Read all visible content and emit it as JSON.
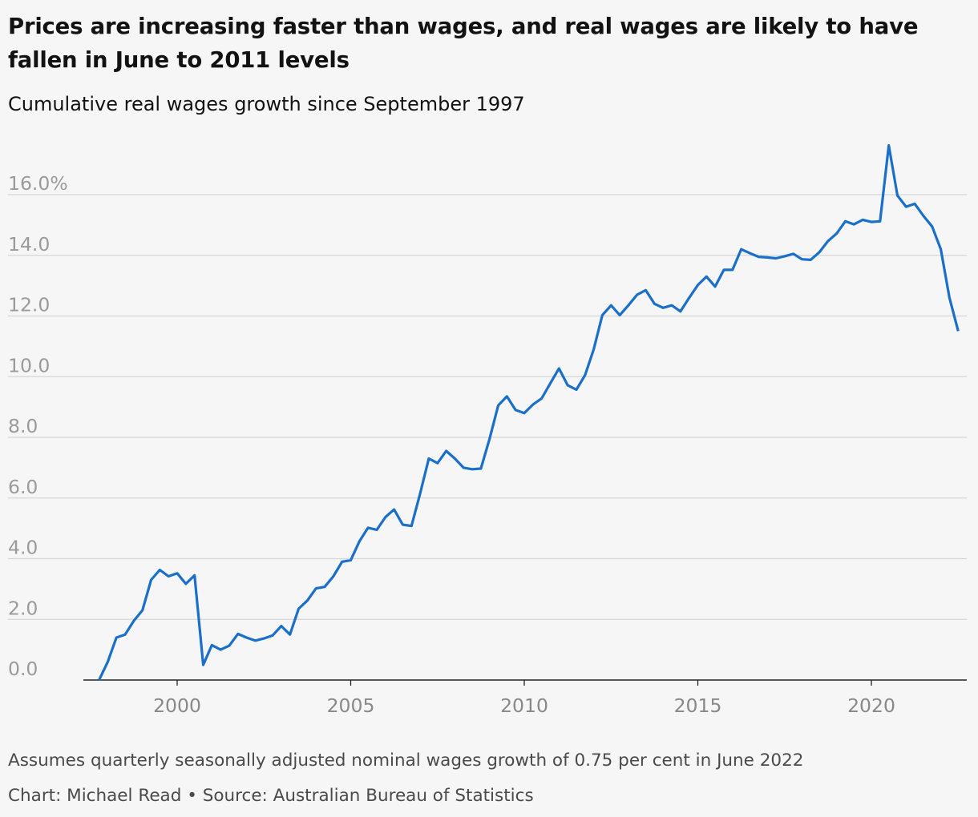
{
  "header": {
    "title": "Prices are increasing faster than wages, and real wages are likely to have fallen in June to 2011 levels",
    "subtitle": "Cumulative real wages growth since September 1997"
  },
  "footer": {
    "note": "Assumes quarterly seasonally adjusted nominal wages growth of 0.75 per cent in June 2022",
    "source": "Chart: Michael Read • Source: Australian Bureau of Statistics"
  },
  "colors": {
    "line": "#1a6fc9",
    "grid": "#d6d6d6",
    "baseline": "#222222",
    "background": "#f6f6f6"
  },
  "chart_data": {
    "type": "line",
    "title": "Prices are increasing faster than wages, and real wages are likely to have fallen in June to 2011 levels",
    "subtitle": "Cumulative real wages growth since September 1997",
    "xlabel": "",
    "ylabel": "",
    "xlim": [
      1997.4,
      2022.9
    ],
    "ylim": [
      0,
      17
    ],
    "grid": true,
    "legend": "none",
    "y_ticks": [
      0,
      2,
      4,
      6,
      8,
      10,
      12,
      14,
      16
    ],
    "y_tick_labels": [
      "0.0",
      "2.0",
      "4.0",
      "6.0",
      "8.0",
      "10.0",
      "12.0",
      "14.0",
      "16.0%"
    ],
    "x_ticks": [
      2000,
      2005,
      2010,
      2015,
      2020
    ],
    "x_tick_labels": [
      "2000",
      "2005",
      "2010",
      "2015",
      "2020"
    ],
    "series": [
      {
        "x": [
          1997.75,
          1998.0,
          1998.25,
          1998.5,
          1998.75,
          1999.0,
          1999.25,
          1999.5,
          1999.75,
          2000.0,
          2000.25,
          2000.5,
          2000.75,
          2001.0,
          2001.25,
          2001.5,
          2001.75,
          2002.0,
          2002.25,
          2002.5,
          2002.75,
          2003.0,
          2003.25,
          2003.5,
          2003.75,
          2004.0,
          2004.25,
          2004.5,
          2004.75,
          2005.0,
          2005.25,
          2005.5,
          2005.75,
          2006.0,
          2006.25,
          2006.5,
          2006.75,
          2007.0,
          2007.25,
          2007.5,
          2007.75,
          2008.0,
          2008.25,
          2008.5,
          2008.75,
          2009.0,
          2009.25,
          2009.5,
          2009.75,
          2010.0,
          2010.25,
          2010.5,
          2010.75,
          2011.0,
          2011.25,
          2011.5,
          2011.75,
          2012.0,
          2012.25,
          2012.5,
          2012.75,
          2013.0,
          2013.25,
          2013.5,
          2013.75,
          2014.0,
          2014.25,
          2014.5,
          2014.75,
          2015.0,
          2015.25,
          2015.5,
          2015.75,
          2016.0,
          2016.25,
          2016.5,
          2016.75,
          2017.0,
          2017.25,
          2017.5,
          2017.75,
          2018.0,
          2018.25,
          2018.5,
          2018.75,
          2019.0,
          2019.25,
          2019.5,
          2019.75,
          2020.0,
          2020.25,
          2020.5,
          2020.75,
          2021.0,
          2021.25,
          2021.5,
          2021.75,
          2022.0,
          2022.25,
          2022.5
        ],
        "values": [
          0.0,
          0.6,
          1.4,
          1.5,
          1.95,
          2.3,
          3.3,
          3.63,
          3.42,
          3.52,
          3.17,
          3.45,
          0.5,
          1.15,
          1.0,
          1.13,
          1.52,
          1.4,
          1.3,
          1.37,
          1.47,
          1.78,
          1.5,
          2.35,
          2.62,
          3.02,
          3.07,
          3.42,
          3.9,
          3.95,
          4.57,
          5.02,
          4.95,
          5.37,
          5.62,
          5.12,
          5.08,
          6.15,
          7.3,
          7.15,
          7.55,
          7.3,
          7.0,
          6.95,
          6.97,
          7.95,
          9.05,
          9.35,
          8.9,
          8.8,
          9.08,
          9.28,
          9.78,
          10.27,
          9.72,
          9.57,
          10.05,
          10.9,
          12.03,
          12.35,
          12.03,
          12.35,
          12.7,
          12.85,
          12.4,
          12.27,
          12.35,
          12.15,
          12.6,
          13.02,
          13.3,
          12.97,
          13.52,
          13.52,
          14.2,
          14.07,
          13.95,
          13.93,
          13.9,
          13.97,
          14.05,
          13.87,
          13.85,
          14.1,
          14.47,
          14.72,
          15.12,
          15.02,
          15.17,
          15.1,
          15.12,
          17.62,
          15.97,
          15.6,
          15.7,
          15.3,
          14.95,
          14.2,
          12.6,
          11.5
        ]
      }
    ]
  }
}
